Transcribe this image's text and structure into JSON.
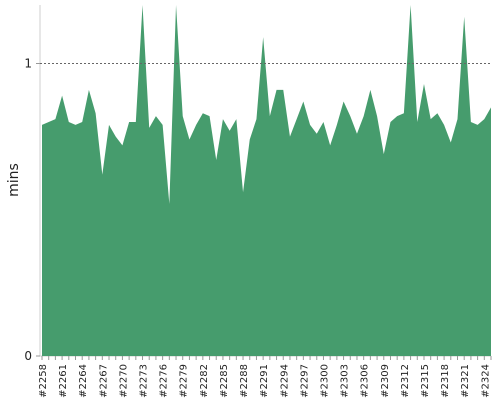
{
  "chart_data": {
    "type": "area",
    "ylabel": "mins",
    "ylim": [
      0,
      1.2
    ],
    "yticks": [
      0,
      1
    ],
    "reference_line": 1,
    "grid": false,
    "color": "#469c6d",
    "x": [
      "#2258",
      "#2259",
      "#2260",
      "#2261",
      "#2262",
      "#2263",
      "#2264",
      "#2265",
      "#2266",
      "#2267",
      "#2268",
      "#2269",
      "#2270",
      "#2271",
      "#2272",
      "#2273",
      "#2274",
      "#2275",
      "#2276",
      "#2277",
      "#2278",
      "#2279",
      "#2280",
      "#2281",
      "#2282",
      "#2283",
      "#2284",
      "#2285",
      "#2286",
      "#2287",
      "#2288",
      "#2289",
      "#2290",
      "#2291",
      "#2292",
      "#2293",
      "#2294",
      "#2295",
      "#2296",
      "#2297",
      "#2298",
      "#2299",
      "#2300",
      "#2301",
      "#2302",
      "#2303",
      "#2304",
      "#2305",
      "#2306",
      "#2307",
      "#2308",
      "#2309",
      "#2310",
      "#2311",
      "#2312",
      "#2313",
      "#2314",
      "#2315",
      "#2316",
      "#2317",
      "#2318",
      "#2319",
      "#2320",
      "#2321",
      "#2322",
      "#2323",
      "#2324",
      "#2325"
    ],
    "xtick_labels": [
      "#2258",
      "#2261",
      "#2264",
      "#2267",
      "#2270",
      "#2273",
      "#2276",
      "#2279",
      "#2282",
      "#2285",
      "#2288",
      "#2291",
      "#2294",
      "#2297",
      "#2300",
      "#2303",
      "#2306",
      "#2309",
      "#2312",
      "#2315",
      "#2318",
      "#2321",
      "#2324"
    ],
    "values": [
      0.79,
      0.8,
      0.81,
      0.89,
      0.8,
      0.79,
      0.8,
      0.91,
      0.83,
      0.62,
      0.79,
      0.75,
      0.72,
      0.8,
      0.8,
      1.22,
      0.78,
      0.82,
      0.79,
      0.52,
      1.22,
      0.82,
      0.74,
      0.79,
      0.83,
      0.82,
      0.67,
      0.81,
      0.77,
      0.81,
      0.56,
      0.74,
      0.81,
      1.09,
      0.82,
      0.91,
      0.91,
      0.75,
      0.81,
      0.87,
      0.79,
      0.76,
      0.8,
      0.72,
      0.79,
      0.87,
      0.82,
      0.76,
      0.82,
      0.91,
      0.82,
      0.69,
      0.8,
      0.82,
      0.83,
      1.22,
      0.8,
      0.93,
      0.81,
      0.83,
      0.79,
      0.73,
      0.81,
      1.16,
      0.8,
      0.79,
      0.81,
      0.85
    ]
  }
}
